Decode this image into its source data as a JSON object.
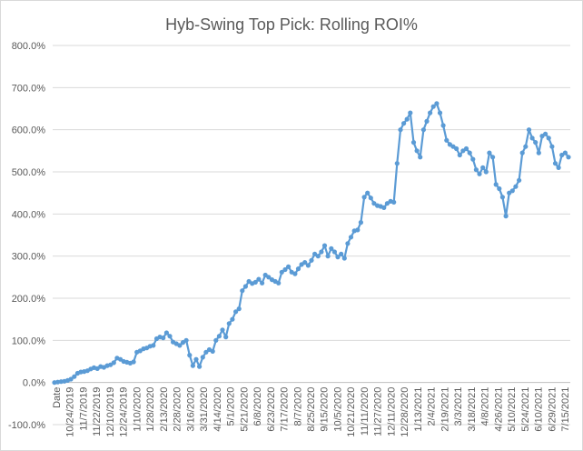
{
  "colors": {
    "series": "#5b9bd5",
    "grid": "#d9d9d9",
    "text": "#595959"
  },
  "chart_data": {
    "type": "line",
    "title": "Hyb-Swing Top Pick: Rolling ROI%",
    "xlabel": "",
    "ylabel": "",
    "ylim": [
      -100,
      800
    ],
    "y_ticks": [
      "-100.0%",
      "0.0%",
      "100.0%",
      "200.0%",
      "300.0%",
      "400.0%",
      "500.0%",
      "600.0%",
      "700.0%",
      "800.0%"
    ],
    "grid": true,
    "legend": "none",
    "x_ticks": [
      "Date",
      "10/24/2019",
      "11/7/2019",
      "11/22/2019",
      "12/10/2019",
      "12/24/2019",
      "1/10/2020",
      "1/28/2020",
      "2/13/2020",
      "2/28/2020",
      "3/16/2020",
      "3/31/2020",
      "4/14/2020",
      "5/1/2020",
      "5/21/2020",
      "6/8/2020",
      "6/23/2020",
      "7/17/2020",
      "8/7/2020",
      "8/25/2020",
      "9/15/2020",
      "10/5/2020",
      "10/21/2020",
      "11/11/2020",
      "11/27/2020",
      "12/11/2020",
      "12/28/2020",
      "1/13/2021",
      "2/4/2021",
      "2/19/2021",
      "3/3/2021",
      "3/18/2021",
      "4/8/2021",
      "4/26/2021",
      "5/10/2021",
      "5/24/2021",
      "6/10/2021",
      "6/29/2021",
      "7/15/2021"
    ],
    "series": [
      {
        "values": [
          0,
          1,
          2,
          3,
          5,
          8,
          14,
          22,
          25,
          26,
          28,
          32,
          35,
          33,
          38,
          36,
          40,
          42,
          47,
          58,
          55,
          50,
          48,
          46,
          49,
          72,
          75,
          80,
          82,
          86,
          88,
          104,
          108,
          106,
          118,
          110,
          96,
          92,
          88,
          95,
          100,
          65,
          40,
          55,
          38,
          60,
          72,
          78,
          74,
          100,
          110,
          125,
          108,
          140,
          150,
          168,
          175,
          218,
          228,
          240,
          235,
          238,
          245,
          236,
          255,
          250,
          244,
          240,
          236,
          262,
          268,
          275,
          262,
          258,
          270,
          280,
          285,
          278,
          290,
          305,
          300,
          310,
          325,
          300,
          318,
          310,
          298,
          305,
          295,
          330,
          345,
          360,
          362,
          380,
          440,
          450,
          438,
          425,
          420,
          418,
          415,
          425,
          430,
          428,
          520,
          600,
          615,
          625,
          640,
          570,
          550,
          535,
          600,
          620,
          640,
          655,
          662,
          640,
          610,
          575,
          565,
          560,
          555,
          540,
          550,
          555,
          545,
          530,
          505,
          495,
          510,
          500,
          545,
          535,
          470,
          460,
          440,
          395,
          450,
          455,
          465,
          480,
          545,
          560,
          600,
          580,
          570,
          545,
          585,
          590,
          580,
          560,
          520,
          510,
          540,
          545,
          535
        ]
      }
    ]
  }
}
